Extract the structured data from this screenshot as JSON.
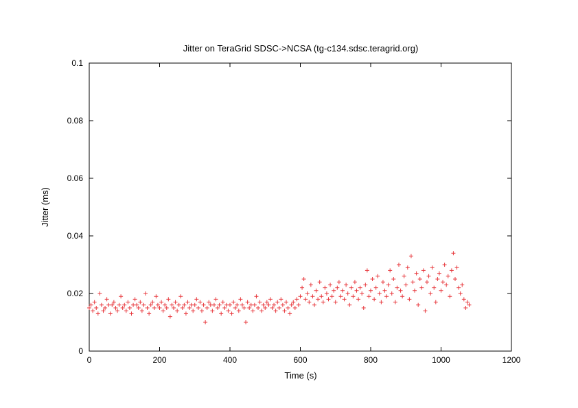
{
  "chart_data": {
    "type": "scatter",
    "title": "Jitter on TeraGrid SDSC->NCSA (tg-c134.sdsc.teragrid.org)",
    "xlabel": "Time (s)",
    "ylabel": "Jitter (ms)",
    "xlim": [
      0,
      1200
    ],
    "ylim": [
      0,
      0.1
    ],
    "xticks": [
      "0",
      "200",
      "400",
      "600",
      "800",
      "1000",
      "1200"
    ],
    "yticks": [
      "0",
      "0.02",
      "0.04",
      "0.06",
      "0.08",
      "0.1"
    ],
    "grid": false,
    "legend": "none",
    "marker": "plus",
    "color": "#e8383d",
    "series": [
      {
        "points": [
          [
            0,
            0.015
          ],
          [
            5,
            0.016
          ],
          [
            10,
            0.014
          ],
          [
            15,
            0.017
          ],
          [
            20,
            0.015
          ],
          [
            25,
            0.013
          ],
          [
            30,
            0.02
          ],
          [
            35,
            0.016
          ],
          [
            40,
            0.014
          ],
          [
            45,
            0.015
          ],
          [
            50,
            0.018
          ],
          [
            55,
            0.016
          ],
          [
            60,
            0.013
          ],
          [
            65,
            0.016
          ],
          [
            70,
            0.017
          ],
          [
            75,
            0.015
          ],
          [
            80,
            0.014
          ],
          [
            85,
            0.016
          ],
          [
            90,
            0.019
          ],
          [
            95,
            0.015
          ],
          [
            100,
            0.016
          ],
          [
            105,
            0.014
          ],
          [
            110,
            0.017
          ],
          [
            115,
            0.015
          ],
          [
            120,
            0.013
          ],
          [
            125,
            0.016
          ],
          [
            130,
            0.018
          ],
          [
            135,
            0.016
          ],
          [
            140,
            0.015
          ],
          [
            145,
            0.017
          ],
          [
            150,
            0.014
          ],
          [
            155,
            0.016
          ],
          [
            160,
            0.02
          ],
          [
            165,
            0.015
          ],
          [
            170,
            0.013
          ],
          [
            175,
            0.016
          ],
          [
            180,
            0.017
          ],
          [
            185,
            0.015
          ],
          [
            190,
            0.019
          ],
          [
            195,
            0.016
          ],
          [
            200,
            0.015
          ],
          [
            205,
            0.017
          ],
          [
            210,
            0.014
          ],
          [
            215,
            0.016
          ],
          [
            220,
            0.015
          ],
          [
            225,
            0.018
          ],
          [
            230,
            0.012
          ],
          [
            235,
            0.016
          ],
          [
            240,
            0.015
          ],
          [
            245,
            0.017
          ],
          [
            250,
            0.014
          ],
          [
            255,
            0.016
          ],
          [
            260,
            0.019
          ],
          [
            265,
            0.015
          ],
          [
            270,
            0.016
          ],
          [
            275,
            0.013
          ],
          [
            280,
            0.017
          ],
          [
            285,
            0.015
          ],
          [
            290,
            0.016
          ],
          [
            295,
            0.014
          ],
          [
            300,
            0.016
          ],
          [
            305,
            0.018
          ],
          [
            310,
            0.015
          ],
          [
            315,
            0.017
          ],
          [
            320,
            0.014
          ],
          [
            325,
            0.016
          ],
          [
            330,
            0.01
          ],
          [
            335,
            0.015
          ],
          [
            340,
            0.017
          ],
          [
            345,
            0.016
          ],
          [
            350,
            0.014
          ],
          [
            355,
            0.016
          ],
          [
            360,
            0.018
          ],
          [
            365,
            0.015
          ],
          [
            370,
            0.016
          ],
          [
            375,
            0.013
          ],
          [
            380,
            0.017
          ],
          [
            385,
            0.015
          ],
          [
            390,
            0.016
          ],
          [
            395,
            0.014
          ],
          [
            400,
            0.016
          ],
          [
            405,
            0.013
          ],
          [
            410,
            0.017
          ],
          [
            415,
            0.015
          ],
          [
            420,
            0.016
          ],
          [
            425,
            0.014
          ],
          [
            430,
            0.018
          ],
          [
            435,
            0.016
          ],
          [
            440,
            0.015
          ],
          [
            445,
            0.01
          ],
          [
            450,
            0.017
          ],
          [
            455,
            0.015
          ],
          [
            460,
            0.016
          ],
          [
            465,
            0.014
          ],
          [
            470,
            0.016
          ],
          [
            475,
            0.019
          ],
          [
            480,
            0.015
          ],
          [
            485,
            0.017
          ],
          [
            490,
            0.014
          ],
          [
            495,
            0.016
          ],
          [
            500,
            0.015
          ],
          [
            505,
            0.017
          ],
          [
            510,
            0.016
          ],
          [
            515,
            0.018
          ],
          [
            520,
            0.015
          ],
          [
            525,
            0.016
          ],
          [
            530,
            0.014
          ],
          [
            535,
            0.017
          ],
          [
            540,
            0.015
          ],
          [
            545,
            0.018
          ],
          [
            550,
            0.016
          ],
          [
            555,
            0.014
          ],
          [
            560,
            0.017
          ],
          [
            565,
            0.015
          ],
          [
            570,
            0.013
          ],
          [
            575,
            0.016
          ],
          [
            580,
            0.017
          ],
          [
            585,
            0.015
          ],
          [
            590,
            0.018
          ],
          [
            595,
            0.016
          ],
          [
            600,
            0.019
          ],
          [
            605,
            0.022
          ],
          [
            610,
            0.025
          ],
          [
            615,
            0.018
          ],
          [
            620,
            0.02
          ],
          [
            625,
            0.017
          ],
          [
            630,
            0.023
          ],
          [
            635,
            0.019
          ],
          [
            640,
            0.016
          ],
          [
            645,
            0.021
          ],
          [
            650,
            0.018
          ],
          [
            655,
            0.024
          ],
          [
            660,
            0.019
          ],
          [
            665,
            0.017
          ],
          [
            670,
            0.022
          ],
          [
            675,
            0.02
          ],
          [
            680,
            0.018
          ],
          [
            685,
            0.023
          ],
          [
            690,
            0.019
          ],
          [
            695,
            0.021
          ],
          [
            700,
            0.017
          ],
          [
            705,
            0.022
          ],
          [
            710,
            0.024
          ],
          [
            715,
            0.019
          ],
          [
            720,
            0.021
          ],
          [
            725,
            0.018
          ],
          [
            730,
            0.023
          ],
          [
            735,
            0.02
          ],
          [
            740,
            0.016
          ],
          [
            745,
            0.022
          ],
          [
            750,
            0.019
          ],
          [
            755,
            0.024
          ],
          [
            760,
            0.021
          ],
          [
            765,
            0.018
          ],
          [
            770,
            0.022
          ],
          [
            775,
            0.02
          ],
          [
            780,
            0.015
          ],
          [
            785,
            0.023
          ],
          [
            790,
            0.028
          ],
          [
            795,
            0.019
          ],
          [
            800,
            0.021
          ],
          [
            805,
            0.025
          ],
          [
            810,
            0.018
          ],
          [
            815,
            0.022
          ],
          [
            820,
            0.026
          ],
          [
            825,
            0.02
          ],
          [
            830,
            0.017
          ],
          [
            835,
            0.024
          ],
          [
            840,
            0.021
          ],
          [
            845,
            0.019
          ],
          [
            850,
            0.023
          ],
          [
            855,
            0.028
          ],
          [
            860,
            0.02
          ],
          [
            865,
            0.025
          ],
          [
            870,
            0.017
          ],
          [
            875,
            0.022
          ],
          [
            880,
            0.03
          ],
          [
            885,
            0.021
          ],
          [
            890,
            0.019
          ],
          [
            895,
            0.026
          ],
          [
            900,
            0.023
          ],
          [
            905,
            0.029
          ],
          [
            910,
            0.018
          ],
          [
            915,
            0.033
          ],
          [
            920,
            0.024
          ],
          [
            925,
            0.021
          ],
          [
            930,
            0.027
          ],
          [
            935,
            0.016
          ],
          [
            940,
            0.025
          ],
          [
            945,
            0.022
          ],
          [
            950,
            0.028
          ],
          [
            955,
            0.014
          ],
          [
            960,
            0.024
          ],
          [
            965,
            0.026
          ],
          [
            970,
            0.02
          ],
          [
            975,
            0.029
          ],
          [
            980,
            0.022
          ],
          [
            985,
            0.017
          ],
          [
            990,
            0.025
          ],
          [
            995,
            0.027
          ],
          [
            1000,
            0.021
          ],
          [
            1005,
            0.024
          ],
          [
            1010,
            0.03
          ],
          [
            1015,
            0.023
          ],
          [
            1020,
            0.026
          ],
          [
            1025,
            0.019
          ],
          [
            1030,
            0.028
          ],
          [
            1035,
            0.034
          ],
          [
            1040,
            0.025
          ],
          [
            1045,
            0.029
          ],
          [
            1050,
            0.022
          ],
          [
            1055,
            0.02
          ],
          [
            1060,
            0.023
          ],
          [
            1065,
            0.018
          ],
          [
            1070,
            0.015
          ],
          [
            1075,
            0.017
          ],
          [
            1080,
            0.016
          ]
        ]
      }
    ]
  }
}
